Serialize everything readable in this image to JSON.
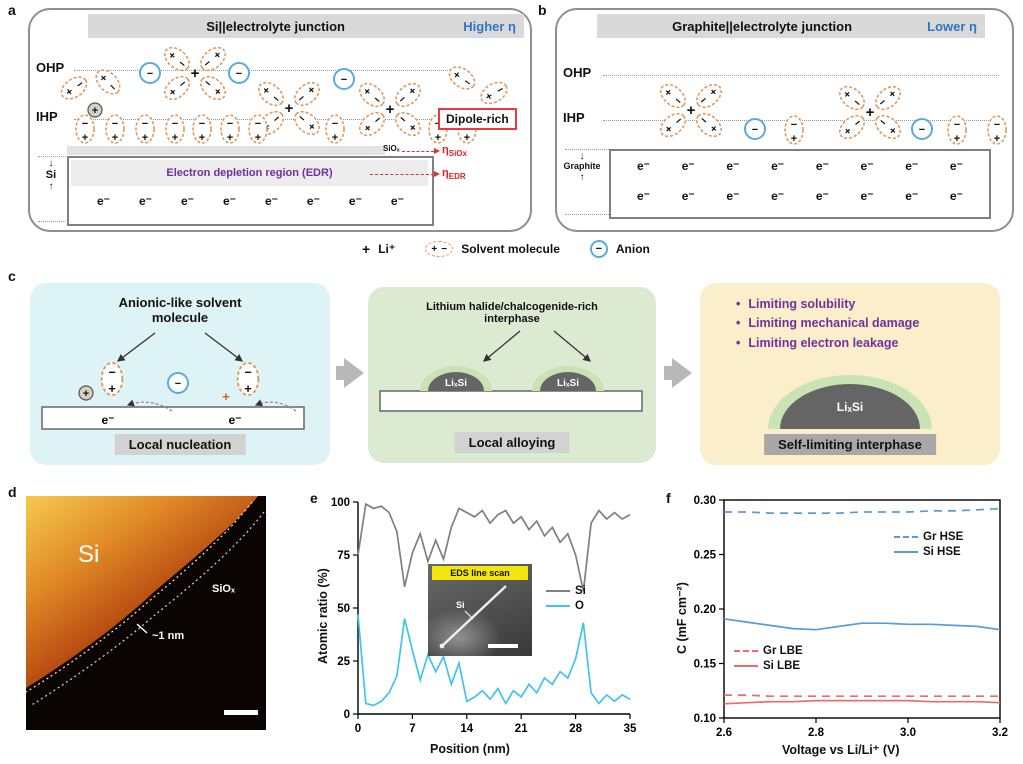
{
  "symbols": {
    "plus": "+",
    "minus": "−",
    "electron": "e⁻"
  },
  "panels": {
    "a": {
      "label": "a",
      "title": "Si||electrolyte junction",
      "badge": "Higher η",
      "ohp": "OHP",
      "ihp": "IHP",
      "dipole_rich": "Dipole-rich",
      "siox_layer": "SiOₓ",
      "eta_siox": {
        "base": "η",
        "sub": "SiOx"
      },
      "eta_edr": {
        "base": "η",
        "sub": "EDR"
      },
      "edr_text": "Electron depletion region (EDR)",
      "electrode": "Si"
    },
    "b": {
      "label": "b",
      "title": "Graphite||electrolyte junction",
      "badge": "Lower η",
      "ohp": "OHP",
      "ihp": "IHP",
      "electrode": "Graphite"
    },
    "legend": {
      "li": "Li⁺",
      "solvent": "Solvent molecule",
      "anion": "Anion"
    },
    "c": {
      "label": "c",
      "stage1": {
        "title_line1": "Anionic-like solvent",
        "title_line2": "molecule",
        "caption": "Local nucleation"
      },
      "stage2": {
        "title_line1": "Lithium halide/chalcogenide-rich",
        "title_line2": "interphase",
        "caption": "Local alloying",
        "particle": "LiₓSi"
      },
      "stage3": {
        "bullets": [
          "Limiting solubility",
          "Limiting mechanical damage",
          "Limiting electron leakage"
        ],
        "bullet_mark": "•",
        "caption": "Self-limiting interphase",
        "particle": "LiₓSi"
      }
    },
    "d": {
      "label": "d",
      "region": "Si",
      "oxide": "SiOₓ",
      "thickness": "~1 nm"
    },
    "e": {
      "label": "e",
      "inset_label": "EDS line scan",
      "inset_annotation": "Si"
    },
    "f": {
      "label": "f"
    }
  },
  "chart_data": [
    {
      "id": "e",
      "type": "line",
      "title": "",
      "xlabel": "Position (nm)",
      "ylabel": "Atomic ratio (%)",
      "xlim": [
        0,
        35
      ],
      "ylim": [
        0,
        100
      ],
      "xticks": [
        "0",
        "7",
        "14",
        "21",
        "28",
        "35"
      ],
      "yticks": [
        "0",
        "25",
        "50",
        "75",
        "100"
      ],
      "grid": false,
      "legend_position": "right-middle",
      "series": [
        {
          "name": "Si",
          "color": "#7f7f7f",
          "style": "solid",
          "x": [
            0,
            1,
            2,
            3,
            4,
            5,
            6,
            7,
            8,
            9,
            10,
            11,
            12,
            13,
            14,
            15,
            16,
            17,
            18,
            19,
            20,
            21,
            22,
            23,
            24,
            25,
            26,
            27,
            28,
            29,
            30,
            31,
            32,
            33,
            34,
            35
          ],
          "y": [
            75,
            99,
            97,
            98,
            95,
            86,
            60,
            76,
            85,
            72,
            82,
            73,
            88,
            97,
            95,
            93,
            96,
            90,
            94,
            96,
            90,
            93,
            87,
            91,
            84,
            88,
            81,
            85,
            75,
            58,
            90,
            96,
            92,
            95,
            92,
            94
          ]
        },
        {
          "name": "O",
          "color": "#3fc4ee",
          "style": "solid",
          "x": [
            0,
            1,
            2,
            3,
            4,
            5,
            6,
            7,
            8,
            9,
            10,
            11,
            12,
            13,
            14,
            15,
            16,
            17,
            18,
            19,
            20,
            21,
            22,
            23,
            24,
            25,
            26,
            27,
            28,
            29,
            30,
            31,
            32,
            33,
            34,
            35
          ],
          "y": [
            47,
            5,
            4,
            6,
            10,
            18,
            45,
            30,
            16,
            28,
            20,
            27,
            14,
            24,
            6,
            8,
            11,
            7,
            12,
            5,
            11,
            8,
            14,
            10,
            17,
            14,
            20,
            17,
            26,
            43,
            10,
            5,
            9,
            6,
            9,
            7
          ]
        }
      ]
    },
    {
      "id": "f",
      "type": "line",
      "title": "",
      "xlabel": "Voltage vs Li/Li⁺ (V)",
      "ylabel": "C (mF cm⁻²)",
      "xlim": [
        2.6,
        3.2
      ],
      "ylim": [
        0.1,
        0.3
      ],
      "xticks": [
        "2.6",
        "2.8",
        "3.0",
        "3.2"
      ],
      "yticks": [
        "0.10",
        "0.15",
        "0.20",
        "0.25",
        "0.30"
      ],
      "grid": false,
      "legend_position": "inside",
      "series": [
        {
          "name": "Gr HSE",
          "color": "#5b9bd5",
          "style": "dashed",
          "x": [
            2.6,
            2.65,
            2.7,
            2.75,
            2.8,
            2.85,
            2.9,
            2.95,
            3.0,
            3.05,
            3.1,
            3.15,
            3.2
          ],
          "y": [
            0.289,
            0.289,
            0.288,
            0.288,
            0.288,
            0.288,
            0.289,
            0.289,
            0.289,
            0.29,
            0.29,
            0.291,
            0.292
          ]
        },
        {
          "name": "Si HSE",
          "color": "#5b9bd5",
          "style": "solid",
          "x": [
            2.6,
            2.65,
            2.7,
            2.75,
            2.8,
            2.85,
            2.9,
            2.95,
            3.0,
            3.05,
            3.1,
            3.15,
            3.2
          ],
          "y": [
            0.191,
            0.188,
            0.185,
            0.182,
            0.181,
            0.184,
            0.187,
            0.187,
            0.186,
            0.186,
            0.185,
            0.184,
            0.181
          ]
        },
        {
          "name": "Gr LBE",
          "color": "#ef6a6a",
          "style": "dashed",
          "x": [
            2.6,
            2.65,
            2.7,
            2.75,
            2.8,
            2.85,
            2.9,
            2.95,
            3.0,
            3.05,
            3.1,
            3.15,
            3.2
          ],
          "y": [
            0.121,
            0.121,
            0.12,
            0.12,
            0.12,
            0.12,
            0.12,
            0.12,
            0.12,
            0.12,
            0.12,
            0.12,
            0.12
          ]
        },
        {
          "name": "Si LBE",
          "color": "#ef6a6a",
          "style": "solid",
          "x": [
            2.6,
            2.65,
            2.7,
            2.75,
            2.8,
            2.85,
            2.9,
            2.95,
            3.0,
            3.05,
            3.1,
            3.15,
            3.2
          ],
          "y": [
            0.113,
            0.114,
            0.115,
            0.115,
            0.116,
            0.116,
            0.116,
            0.116,
            0.116,
            0.115,
            0.115,
            0.115,
            0.114
          ]
        }
      ]
    }
  ]
}
